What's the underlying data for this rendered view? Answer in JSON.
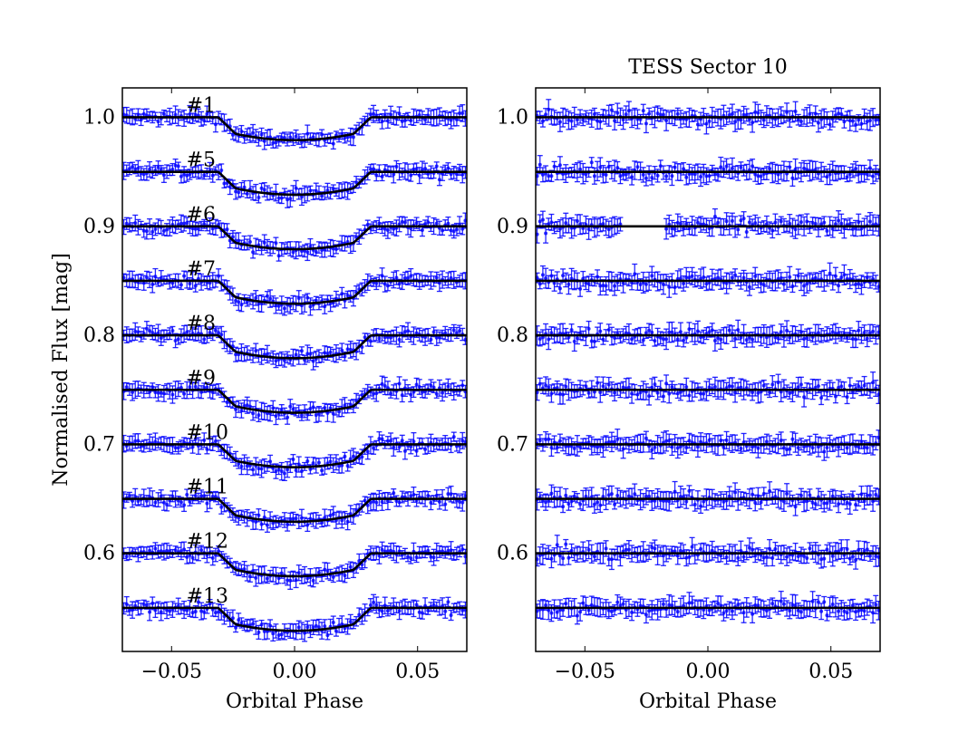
{
  "figure": {
    "ylabel": "Normalised Flux [mag]"
  },
  "chart_data": [
    {
      "type": "scatter",
      "panel": "left",
      "title": "",
      "xlabel": "Orbital Phase",
      "ylabel": "Normalised Flux [mag]",
      "xlim": [
        -0.07,
        0.07
      ],
      "ylim": [
        0.51,
        1.027
      ],
      "xticks": [
        -0.05,
        0.0,
        0.05
      ],
      "xtick_labels": [
        "−0.05",
        "0.00",
        "0.05"
      ],
      "yticks": [
        0.6,
        0.7,
        0.8,
        0.9,
        1.0
      ],
      "ytick_labels": [
        "0.6",
        "0.7",
        "0.8",
        "0.9",
        "1.0"
      ],
      "marker_color": "#0000ff",
      "model_color": "#000000",
      "transit": {
        "half_width": 0.031,
        "ingress": 0.007
      },
      "series": [
        {
          "name": "#1",
          "baseline": 1.0,
          "depth": 0.021,
          "noise": 0.005
        },
        {
          "name": "#5",
          "baseline": 0.95,
          "depth": 0.021,
          "noise": 0.005
        },
        {
          "name": "#6",
          "baseline": 0.9,
          "depth": 0.021,
          "noise": 0.005
        },
        {
          "name": "#7",
          "baseline": 0.85,
          "depth": 0.021,
          "noise": 0.005
        },
        {
          "name": "#8",
          "baseline": 0.8,
          "depth": 0.021,
          "noise": 0.005
        },
        {
          "name": "#9",
          "baseline": 0.75,
          "depth": 0.021,
          "noise": 0.005
        },
        {
          "name": "#10",
          "baseline": 0.7,
          "depth": 0.021,
          "noise": 0.005
        },
        {
          "name": "#11",
          "baseline": 0.65,
          "depth": 0.021,
          "noise": 0.005
        },
        {
          "name": "#12",
          "baseline": 0.6,
          "depth": 0.021,
          "noise": 0.005
        },
        {
          "name": "#13",
          "baseline": 0.55,
          "depth": 0.021,
          "noise": 0.005
        }
      ]
    },
    {
      "type": "scatter",
      "panel": "right",
      "title": "TESS Sector 10",
      "xlabel": "Orbital Phase",
      "ylabel": "",
      "xlim": [
        -0.07,
        0.07
      ],
      "ylim": [
        0.51,
        1.027
      ],
      "xticks": [
        -0.05,
        0.0,
        0.05
      ],
      "xtick_labels": [
        "−0.05",
        "0.00",
        "0.05"
      ],
      "yticks": [
        0.6,
        0.7,
        0.8,
        0.9,
        1.0
      ],
      "ytick_labels": [
        "0.6",
        "0.7",
        "0.8",
        "0.9",
        "1.0"
      ],
      "marker_color": "#0000ff",
      "model_color": "#000000",
      "data_gap": {
        "panel_series_index": 2,
        "from": -0.035,
        "to": -0.017
      },
      "series": [
        {
          "name": "",
          "baseline": 1.0,
          "depth": 0.0,
          "noise": 0.006
        },
        {
          "name": "",
          "baseline": 0.95,
          "depth": 0.0,
          "noise": 0.006
        },
        {
          "name": "",
          "baseline": 0.9,
          "depth": 0.0,
          "noise": 0.006
        },
        {
          "name": "",
          "baseline": 0.85,
          "depth": 0.0,
          "noise": 0.006
        },
        {
          "name": "",
          "baseline": 0.8,
          "depth": 0.0,
          "noise": 0.006
        },
        {
          "name": "",
          "baseline": 0.75,
          "depth": 0.0,
          "noise": 0.006
        },
        {
          "name": "",
          "baseline": 0.7,
          "depth": 0.0,
          "noise": 0.006
        },
        {
          "name": "",
          "baseline": 0.65,
          "depth": 0.0,
          "noise": 0.006
        },
        {
          "name": "",
          "baseline": 0.6,
          "depth": 0.0,
          "noise": 0.006
        },
        {
          "name": "",
          "baseline": 0.55,
          "depth": 0.0,
          "noise": 0.006
        }
      ]
    }
  ]
}
